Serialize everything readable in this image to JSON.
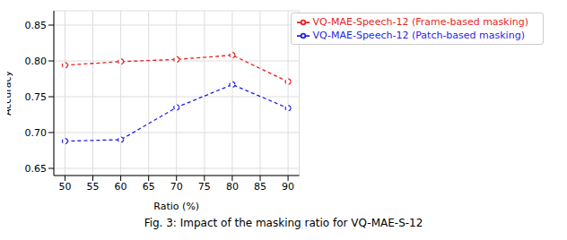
{
  "chart_data": {
    "type": "line",
    "caption": "Fig. 3: Impact of the masking ratio for VQ-MAE-S-12",
    "x_label": "Ratio (%)",
    "y_label": "Accuracy",
    "x": [
      50,
      60,
      70,
      80,
      90
    ],
    "series": [
      {
        "name": "VQ-MAE-Speech-12 (Patch-based masking)",
        "color": "#1f1fe6",
        "marker": "circle",
        "line_style": "dashed",
        "values": [
          0.688,
          0.69,
          0.735,
          0.767,
          0.734
        ]
      },
      {
        "name": "VQ-MAE-Speech-12 (Frame-based masking)",
        "color": "#e61f1f",
        "marker": "circle",
        "line_style": "dashed",
        "values": [
          0.794,
          0.799,
          0.802,
          0.808,
          0.771
        ]
      }
    ],
    "xlim": [
      48,
      92
    ],
    "xticks": [
      50,
      55,
      60,
      65,
      70,
      75,
      80,
      85,
      90
    ],
    "ylim": [
      0.64,
      0.87
    ],
    "yticks": [
      0.65,
      {
        "value": 0.7,
        "label": "0.70"
      },
      0.75,
      {
        "value": 0.8,
        "label": "0.80"
      },
      0.85
    ],
    "grid": true,
    "legend": "upper right"
  }
}
